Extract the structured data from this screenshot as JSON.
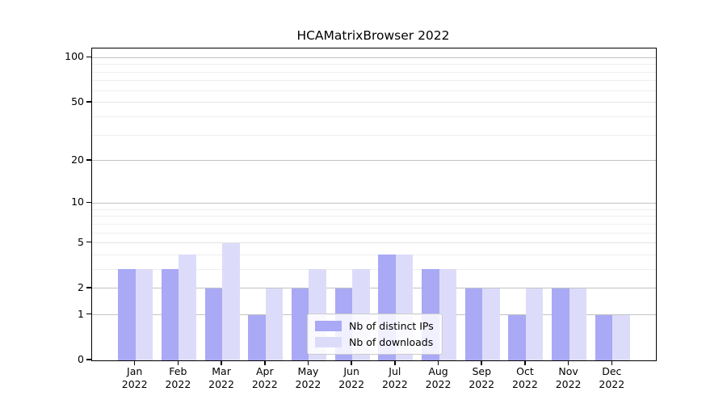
{
  "chart_data": {
    "type": "bar",
    "title": "HCAMatrixBrowser 2022",
    "categories": [
      "Jan",
      "Feb",
      "Mar",
      "Apr",
      "May",
      "Jun",
      "Jul",
      "Aug",
      "Sep",
      "Oct",
      "Nov",
      "Dec"
    ],
    "category_year": "2022",
    "series": [
      {
        "name": "Nb of distinct IPs",
        "color": "#a9a9f6",
        "values": [
          3,
          3,
          2,
          1,
          2,
          2,
          4,
          3,
          2,
          1,
          2,
          1
        ]
      },
      {
        "name": "Nb of downloads",
        "color": "#dcdcfa",
        "values": [
          3,
          4,
          5,
          2,
          3,
          3,
          4,
          3,
          2,
          2,
          2,
          1
        ]
      }
    ],
    "yticks": [
      0,
      1,
      2,
      5,
      10,
      20,
      50,
      100
    ],
    "yscale": "log10(1+v)",
    "ylim": [
      0,
      110
    ],
    "grid": true,
    "gridlines": {
      "strong": [
        1,
        2,
        10,
        20,
        100
      ],
      "weak": [
        5,
        50
      ],
      "minor": [
        3,
        4,
        6,
        7,
        8,
        9,
        30,
        40,
        60,
        70,
        80,
        90
      ]
    },
    "legend_position": "lower center",
    "xlabel": "",
    "ylabel": ""
  },
  "colors": {
    "grid_strong": "#c2c2c2",
    "grid_weak": "#e2e2e2",
    "grid_minor": "#efefef",
    "axis": "#000000",
    "legend_border": "#cccccc"
  }
}
